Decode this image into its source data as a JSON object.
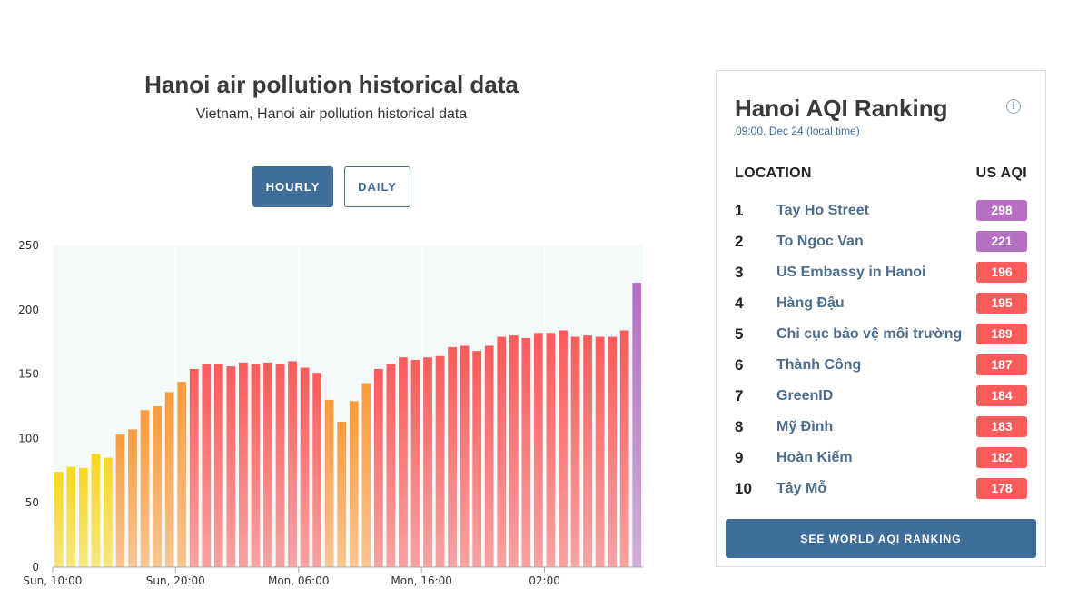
{
  "page": {
    "title": "Hanoi air pollution historical data",
    "subtitle": "Vietnam, Hanoi air pollution historical data",
    "tabs": {
      "hourly": "HOURLY",
      "daily": "DAILY"
    }
  },
  "ranking": {
    "title": "Hanoi AQI Ranking",
    "time": "09:00, Dec 24 (local time)",
    "info_icon": "info-icon",
    "col_location": "LOCATION",
    "col_aqi": "US AQI",
    "items": [
      {
        "rank": "1",
        "name": "Tay Ho Street",
        "aqi": "298",
        "color": "#b570c2"
      },
      {
        "rank": "2",
        "name": "To Ngoc Van",
        "aqi": "221",
        "color": "#b570c2"
      },
      {
        "rank": "3",
        "name": "US Embassy in Hanoi",
        "aqi": "196",
        "color": "#fb5b5b"
      },
      {
        "rank": "4",
        "name": "Hàng Đậu",
        "aqi": "195",
        "color": "#fb5b5b"
      },
      {
        "rank": "5",
        "name": "Chi cục bảo vệ môi trường",
        "aqi": "189",
        "color": "#fb5b5b"
      },
      {
        "rank": "6",
        "name": "Thành Công",
        "aqi": "187",
        "color": "#fb5b5b"
      },
      {
        "rank": "7",
        "name": "GreenID",
        "aqi": "184",
        "color": "#fb5b5b"
      },
      {
        "rank": "8",
        "name": "Mỹ Đình",
        "aqi": "183",
        "color": "#fb5b5b"
      },
      {
        "rank": "9",
        "name": "Hoàn Kiếm",
        "aqi": "182",
        "color": "#fb5b5b"
      },
      {
        "rank": "10",
        "name": "Tây Mỗ",
        "aqi": "178",
        "color": "#fb5b5b"
      }
    ],
    "world_button": "SEE WORLD AQI RANKING"
  },
  "chart_data": {
    "type": "bar",
    "title": "",
    "xlabel": "",
    "ylabel": "",
    "ylim": [
      0,
      250
    ],
    "yticks": [
      0,
      50,
      100,
      150,
      200,
      250
    ],
    "xtick_labels": [
      "Sun, 10:00",
      "Sun, 20:00",
      "Mon, 06:00",
      "Mon, 16:00",
      "02:00"
    ],
    "xtick_indices": [
      0,
      10,
      20,
      30,
      40
    ],
    "grid": true,
    "values": [
      74,
      78,
      77,
      88,
      85,
      103,
      107,
      122,
      125,
      136,
      144,
      154,
      158,
      158,
      156,
      159,
      158,
      159,
      158,
      160,
      155,
      151,
      130,
      113,
      129,
      143,
      154,
      158,
      163,
      161,
      163,
      164,
      171,
      172,
      168,
      172,
      179,
      180,
      178,
      182,
      182,
      184,
      179,
      180,
      179,
      179,
      184,
      221
    ],
    "colors": {
      "good": "#f9d71c",
      "moderate": "#fb9b3c",
      "unhealthy": "#fb5b5b",
      "very_unhealthy": "#b570c2",
      "plot_bg": "#f4f9f9"
    }
  }
}
